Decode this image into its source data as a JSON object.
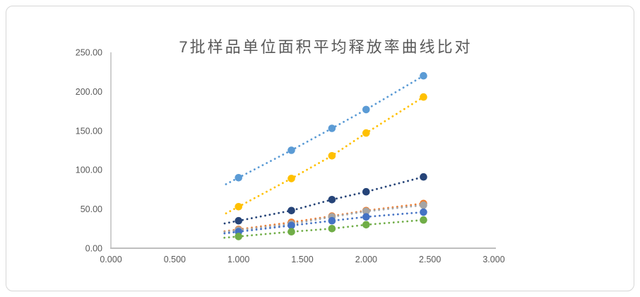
{
  "card": {
    "background": "#FFFFFF",
    "border_color": "#D6D6D6"
  },
  "chart_data": {
    "type": "scatter",
    "title": "7批样品单位面积平均释放率曲线比对",
    "title_color": "#595959",
    "xlabel": "",
    "ylabel": "",
    "xlim": [
      0,
      3
    ],
    "ylim": [
      0,
      250
    ],
    "x_tick_labels": [
      "0.000",
      "0.500",
      "1.000",
      "1.500",
      "2.000",
      "2.500",
      "3.000"
    ],
    "y_tick_labels": [
      "0.00",
      "50.00",
      "100.00",
      "150.00",
      "200.00",
      "250.00"
    ],
    "grid": false,
    "legend_position": "none",
    "axis_color": "#BFBFBF",
    "tick_label_color": "#595959",
    "line_style": "round-dot",
    "marker_style": "circle",
    "x": [
      1.0,
      1.414,
      1.732,
      2.0,
      2.449
    ],
    "series": [
      {
        "name": "series-1-light-blue",
        "color": "#5B9BD5",
        "values": [
          90,
          125,
          153,
          177,
          220
        ]
      },
      {
        "name": "series-2-gold",
        "color": "#FFC000",
        "values": [
          53,
          89,
          118,
          147,
          193
        ]
      },
      {
        "name": "series-3-navy",
        "color": "#264478",
        "values": [
          35,
          48,
          62,
          72,
          91
        ]
      },
      {
        "name": "series-4-orange",
        "color": "#ED7D31",
        "values": [
          24,
          33,
          41,
          48,
          57
        ]
      },
      {
        "name": "series-5-gray",
        "color": "#A5A5A5",
        "values": [
          23,
          31,
          40,
          47,
          55
        ]
      },
      {
        "name": "series-6-blue",
        "color": "#4472C4",
        "values": [
          21,
          29,
          35,
          40,
          46
        ]
      },
      {
        "name": "series-7-green",
        "color": "#70AD47",
        "values": [
          15,
          21,
          25,
          30,
          36
        ]
      }
    ]
  }
}
